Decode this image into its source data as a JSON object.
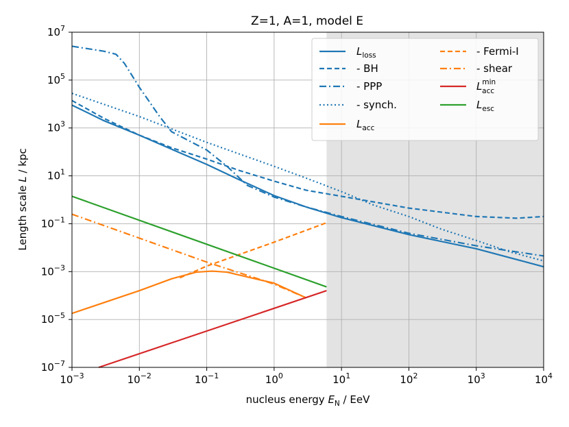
{
  "chart_data": {
    "type": "line",
    "title": "Z=1, A=1, model E",
    "xlabel": {
      "text": "nucleus energy ",
      "sym": "E",
      "sub": "N",
      "unit": " / EeV"
    },
    "ylabel": {
      "text": "Length scale ",
      "sym": "L",
      "unit": " / kpc"
    },
    "xscale": "log",
    "yscale": "log",
    "xlim": [
      0.001,
      10000
    ],
    "ylim": [
      1e-07,
      10000000.0
    ],
    "grid": true,
    "shaded_region": {
      "x": [
        6,
        10000
      ],
      "color": "#e3e3e3"
    },
    "x_ticks": [
      {
        "base": "10",
        "exp": "−3"
      },
      {
        "base": "10",
        "exp": "−2"
      },
      {
        "base": "10",
        "exp": "−1"
      },
      {
        "base": "10",
        "exp": "0"
      },
      {
        "base": "10",
        "exp": "1"
      },
      {
        "base": "10",
        "exp": "2"
      },
      {
        "base": "10",
        "exp": "3"
      },
      {
        "base": "10",
        "exp": "4"
      }
    ],
    "y_ticks": [
      {
        "base": "10",
        "exp": "−7"
      },
      {
        "base": "10",
        "exp": "−5"
      },
      {
        "base": "10",
        "exp": "−3"
      },
      {
        "base": "10",
        "exp": "−1"
      },
      {
        "base": "10",
        "exp": "1"
      },
      {
        "base": "10",
        "exp": "3"
      },
      {
        "base": "10",
        "exp": "5"
      },
      {
        "base": "10",
        "exp": "7"
      }
    ],
    "legend_position": "top-right",
    "series": [
      {
        "label": "L",
        "label_sub": "loss",
        "color": "#1f77b4",
        "style": "solid",
        "points": [
          [
            0.001,
            9000
          ],
          [
            0.003,
            2000
          ],
          [
            0.01,
            500
          ],
          [
            0.03,
            130
          ],
          [
            0.1,
            30
          ],
          [
            0.3,
            7
          ],
          [
            1,
            1.5
          ],
          [
            3,
            0.5
          ],
          [
            10,
            0.18
          ],
          [
            100,
            0.035
          ],
          [
            1000,
            0.009
          ],
          [
            10000,
            0.0016
          ]
        ]
      },
      {
        "label": "  - BH",
        "color": "#1f77b4",
        "style": "dashed",
        "points": [
          [
            0.001,
            14000
          ],
          [
            0.003,
            2500
          ],
          [
            0.01,
            500
          ],
          [
            0.03,
            150
          ],
          [
            0.1,
            50
          ],
          [
            0.3,
            17
          ],
          [
            1,
            6
          ],
          [
            3,
            2.5
          ],
          [
            10,
            1.4
          ],
          [
            100,
            0.45
          ],
          [
            1000,
            0.2
          ],
          [
            4000,
            0.17
          ],
          [
            10000,
            0.2
          ]
        ]
      },
      {
        "label": "  - PPP",
        "color": "#1f77b4",
        "style": "dashdot",
        "points": [
          [
            0.001,
            2600000
          ],
          [
            0.003,
            1600000
          ],
          [
            0.0045,
            1200000
          ],
          [
            0.006,
            500000
          ],
          [
            0.01,
            50000
          ],
          [
            0.02,
            3000
          ],
          [
            0.03,
            700
          ],
          [
            0.1,
            120
          ],
          [
            0.2,
            25
          ],
          [
            0.4,
            4
          ],
          [
            1,
            1.3
          ],
          [
            3,
            0.5
          ],
          [
            10,
            0.2
          ],
          [
            100,
            0.04
          ],
          [
            1000,
            0.012
          ],
          [
            10000,
            0.0045
          ]
        ]
      },
      {
        "label": "  - synch.",
        "color": "#1f77b4",
        "style": "dotted",
        "points": [
          [
            0.001,
            28000
          ],
          [
            0.01,
            3000
          ],
          [
            0.1,
            250
          ],
          [
            1,
            25
          ],
          [
            3,
            8
          ],
          [
            10,
            2.2
          ],
          [
            30,
            0.6
          ],
          [
            100,
            0.2
          ],
          [
            300,
            0.06
          ],
          [
            1000,
            0.02
          ],
          [
            3000,
            0.007
          ],
          [
            10000,
            0.0028
          ]
        ]
      },
      {
        "label": "L",
        "label_sub": "acc",
        "color": "#ff7f0e",
        "style": "solid",
        "points": [
          [
            0.001,
            1.8e-05
          ],
          [
            0.01,
            0.00016
          ],
          [
            0.03,
            0.0005
          ],
          [
            0.07,
            0.00095
          ],
          [
            0.12,
            0.00105
          ],
          [
            0.2,
            0.00095
          ],
          [
            0.4,
            0.0006
          ],
          [
            1,
            0.00033
          ],
          [
            3,
            8e-05
          ]
        ]
      },
      {
        "label": "  - Fermi-I",
        "color": "#ff7f0e",
        "style": "dashed",
        "points": [
          [
            0.04,
            0.00055
          ],
          [
            0.1,
            0.0017
          ],
          [
            1,
            0.017
          ],
          [
            6,
            0.11
          ]
        ]
      },
      {
        "label": "  - shear",
        "color": "#ff7f0e",
        "style": "dashdot",
        "points": [
          [
            0.001,
            0.25
          ],
          [
            0.01,
            0.025
          ],
          [
            0.1,
            0.0025
          ],
          [
            1,
            0.0003
          ],
          [
            3,
            8e-05
          ]
        ]
      },
      {
        "label": "L",
        "label_sub": "acc",
        "label_sup": "min",
        "color": "#d62728",
        "style": "solid",
        "points": [
          [
            0.0025,
            1e-07
          ],
          [
            6,
            0.00016
          ]
        ]
      },
      {
        "label": "L",
        "label_sub": "esc",
        "color": "#2ca02c",
        "style": "solid",
        "points": [
          [
            0.001,
            1.4
          ],
          [
            6,
            0.00023
          ]
        ]
      }
    ]
  }
}
